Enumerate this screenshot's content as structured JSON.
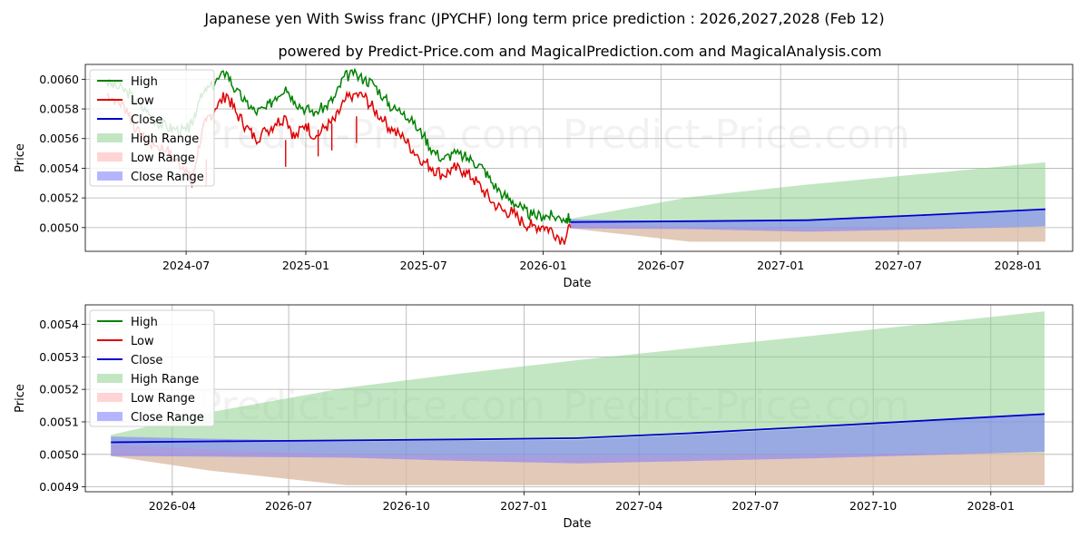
{
  "title": "Japanese yen With Swiss franc (JPYCHF) long term price prediction : 2026,2027,2028 (Feb 12)",
  "subtitle": "powered by Predict-Price.com and MagicalPrediction.com and MagicalAnalysis.com",
  "watermark": "Predict-Price.com",
  "colors": {
    "high": "#008000",
    "low": "#e00000",
    "close": "#0000cc",
    "high_range": "#8fd18f",
    "low_range": "#ffb0b0",
    "close_range": "#7878ff"
  },
  "chart_data": [
    {
      "type": "line",
      "name": "top-panel",
      "xlabel": "Date",
      "ylabel": "Price",
      "grid": true,
      "legend_position": "top-left",
      "xlim": [
        "2024-01-28",
        "2028-03-25"
      ],
      "ylim": [
        0.00484,
        0.0061
      ],
      "x_ticks": [
        {
          "date": "2024-07-01",
          "label": "2024-07"
        },
        {
          "date": "2025-01-01",
          "label": "2025-01"
        },
        {
          "date": "2025-07-01",
          "label": "2025-07"
        },
        {
          "date": "2026-01-01",
          "label": "2026-01"
        },
        {
          "date": "2026-07-01",
          "label": "2026-07"
        },
        {
          "date": "2027-01-01",
          "label": "2027-01"
        },
        {
          "date": "2027-07-01",
          "label": "2027-07"
        },
        {
          "date": "2028-01-01",
          "label": "2028-01"
        }
      ],
      "y_ticks": [
        {
          "value": 0.005,
          "label": "0.0050"
        },
        {
          "value": 0.0052,
          "label": "0.0052"
        },
        {
          "value": 0.0054,
          "label": "0.0054"
        },
        {
          "value": 0.0056,
          "label": "0.0056"
        },
        {
          "value": 0.0058,
          "label": "0.0058"
        },
        {
          "value": 0.006,
          "label": "0.0060"
        }
      ],
      "legend": [
        "High",
        "Low",
        "Close",
        "High Range",
        "Low Range",
        "Close Range"
      ],
      "history": {
        "dates": [
          "2024-03-01",
          "2024-03-15",
          "2024-04-01",
          "2024-04-15",
          "2024-05-01",
          "2024-05-15",
          "2024-06-01",
          "2024-06-15",
          "2024-07-01",
          "2024-07-10",
          "2024-07-20",
          "2024-08-01",
          "2024-08-15",
          "2024-09-01",
          "2024-09-15",
          "2024-10-01",
          "2024-10-15",
          "2024-11-01",
          "2024-11-15",
          "2024-12-01",
          "2024-12-15",
          "2025-01-01",
          "2025-01-15",
          "2025-02-01",
          "2025-02-15",
          "2025-03-01",
          "2025-03-15",
          "2025-04-01",
          "2025-04-15",
          "2025-05-01",
          "2025-05-15",
          "2025-06-01",
          "2025-06-15",
          "2025-07-01",
          "2025-07-15",
          "2025-08-01",
          "2025-08-15",
          "2025-09-01",
          "2025-09-15",
          "2025-10-01",
          "2025-10-15",
          "2025-11-01",
          "2025-11-15",
          "2025-12-01",
          "2025-12-15",
          "2026-01-01",
          "2026-01-15",
          "2026-02-01",
          "2026-02-12"
        ],
        "high": [
          0.00598,
          0.00595,
          0.00592,
          0.00585,
          0.00578,
          0.00572,
          0.00568,
          0.00566,
          0.00565,
          0.0057,
          0.00585,
          0.00592,
          0.00598,
          0.00605,
          0.00592,
          0.00585,
          0.00578,
          0.0058,
          0.00588,
          0.00595,
          0.00585,
          0.0058,
          0.00578,
          0.00582,
          0.00588,
          0.00602,
          0.00603,
          0.006,
          0.00597,
          0.00588,
          0.0058,
          0.00578,
          0.0057,
          0.00562,
          0.00552,
          0.00546,
          0.0055,
          0.00548,
          0.00545,
          0.0054,
          0.0053,
          0.00522,
          0.00518,
          0.00512,
          0.00508,
          0.00508,
          0.00508,
          0.00506,
          0.00506
        ],
        "low": [
          0.0059,
          0.00586,
          0.0058,
          0.00565,
          0.00558,
          0.00555,
          0.00552,
          0.00545,
          0.0054,
          0.00528,
          0.00555,
          0.00572,
          0.0058,
          0.0059,
          0.00578,
          0.00568,
          0.0056,
          0.00565,
          0.0057,
          0.00575,
          0.0056,
          0.0057,
          0.0056,
          0.00568,
          0.00572,
          0.00585,
          0.0059,
          0.00588,
          0.0058,
          0.00572,
          0.00565,
          0.0056,
          0.00552,
          0.00545,
          0.0054,
          0.00535,
          0.0054,
          0.00538,
          0.00533,
          0.00525,
          0.00517,
          0.00511,
          0.0051,
          0.00503,
          0.00501,
          0.00501,
          0.00498,
          0.00491,
          0.005
        ],
        "low_spikes": [
          {
            "date": "2024-08-01",
            "value": 0.00528
          },
          {
            "date": "2024-12-01",
            "value": 0.00541
          },
          {
            "date": "2025-01-20",
            "value": 0.00548
          },
          {
            "date": "2025-02-10",
            "value": 0.00552
          },
          {
            "date": "2025-03-20",
            "value": 0.00557
          }
        ]
      },
      "forecast": {
        "dates": [
          "2026-02-12",
          "2026-08-15",
          "2027-02-12",
          "2027-08-15",
          "2028-02-12"
        ],
        "close": [
          0.005037,
          0.005043,
          0.00505,
          0.005085,
          0.005124
        ],
        "high_range": [
          [
            0.00506,
            0.004995
          ],
          [
            0.005205,
            0.004905
          ],
          [
            0.00529,
            0.004905
          ],
          [
            0.005365,
            0.004905
          ],
          [
            0.00544,
            0.004905
          ]
        ],
        "low_range": [
          [
            0.00503,
            0.004995
          ],
          [
            0.005,
            0.004905
          ],
          [
            0.004995,
            0.004905
          ],
          [
            0.005,
            0.004905
          ],
          [
            0.005005,
            0.004905
          ]
        ],
        "close_range": [
          [
            0.005055,
            0.004995
          ],
          [
            0.00504,
            0.00499
          ],
          [
            0.005045,
            0.004972
          ],
          [
            0.00508,
            0.004988
          ],
          [
            0.005124,
            0.005008
          ]
        ]
      }
    },
    {
      "type": "area",
      "name": "bottom-panel",
      "xlabel": "Date",
      "ylabel": "Price",
      "grid": true,
      "legend_position": "top-left",
      "xlim": [
        "2026-01-23",
        "2028-03-05"
      ],
      "ylim": [
        0.004885,
        0.00546
      ],
      "x_ticks": [
        {
          "date": "2026-04-01",
          "label": "2026-04"
        },
        {
          "date": "2026-07-01",
          "label": "2026-07"
        },
        {
          "date": "2026-10-01",
          "label": "2026-10"
        },
        {
          "date": "2027-01-01",
          "label": "2027-01"
        },
        {
          "date": "2027-04-01",
          "label": "2027-04"
        },
        {
          "date": "2027-07-01",
          "label": "2027-07"
        },
        {
          "date": "2027-10-01",
          "label": "2027-10"
        },
        {
          "date": "2028-01-01",
          "label": "2028-01"
        }
      ],
      "y_ticks": [
        {
          "value": 0.0049,
          "label": "0.0049"
        },
        {
          "value": 0.005,
          "label": "0.0050"
        },
        {
          "value": 0.0051,
          "label": "0.0051"
        },
        {
          "value": 0.0052,
          "label": "0.0052"
        },
        {
          "value": 0.0053,
          "label": "0.0053"
        },
        {
          "value": 0.0054,
          "label": "0.0054"
        }
      ],
      "legend": [
        "High",
        "Low",
        "Close",
        "High Range",
        "Low Range",
        "Close Range"
      ],
      "forecast": {
        "dates": [
          "2026-02-12",
          "2026-05-01",
          "2026-08-15",
          "2026-11-15",
          "2027-02-12",
          "2027-05-15",
          "2027-08-15",
          "2027-11-15",
          "2028-02-12"
        ],
        "close": [
          0.005037,
          0.00504,
          0.005043,
          0.005046,
          0.00505,
          0.005066,
          0.005085,
          0.005105,
          0.005124
        ],
        "high_range": [
          [
            0.00506,
            0.004995
          ],
          [
            0.00513,
            0.00495
          ],
          [
            0.005205,
            0.004905
          ],
          [
            0.00525,
            0.004905
          ],
          [
            0.00529,
            0.004905
          ],
          [
            0.005328,
            0.004905
          ],
          [
            0.005365,
            0.004905
          ],
          [
            0.005403,
            0.004905
          ],
          [
            0.00544,
            0.004905
          ]
        ],
        "low_range": [
          [
            0.00503,
            0.004995
          ],
          [
            0.005015,
            0.00495
          ],
          [
            0.005,
            0.004905
          ],
          [
            0.004997,
            0.004905
          ],
          [
            0.004995,
            0.004905
          ],
          [
            0.004997,
            0.004905
          ],
          [
            0.005,
            0.004905
          ],
          [
            0.005003,
            0.004905
          ],
          [
            0.005005,
            0.004905
          ]
        ],
        "close_range": [
          [
            0.005055,
            0.004995
          ],
          [
            0.005048,
            0.004993
          ],
          [
            0.00504,
            0.00499
          ],
          [
            0.005042,
            0.00498
          ],
          [
            0.005045,
            0.004972
          ],
          [
            0.005062,
            0.00498
          ],
          [
            0.00508,
            0.004988
          ],
          [
            0.005102,
            0.004998
          ],
          [
            0.005124,
            0.005008
          ]
        ]
      }
    }
  ]
}
